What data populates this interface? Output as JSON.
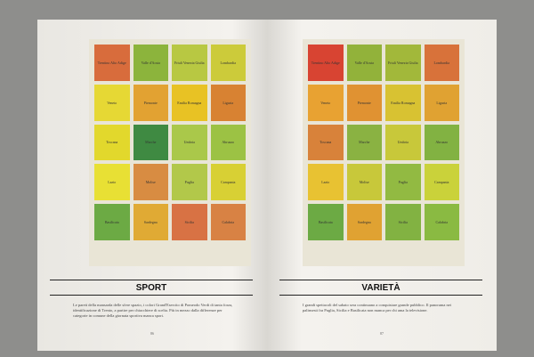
{
  "pages": [
    {
      "title": "SPORT",
      "page_number": "86",
      "body": "Le pareti della mansarda delle sfere spazio, i colori Grand'Esercito di Pomeodo Verdi di tanta forza, identificazione di Trento, a partire per chiacchiere di scelta. Più in mezzo dalla differenze per categorie in comune della giornata sportiva manca sport.",
      "cells": [
        {
          "label": "Trentino Alto Adige",
          "color": "#d86c3c"
        },
        {
          "label": "Valle d'Aosta",
          "color": "#8cb43c"
        },
        {
          "label": "Friuli Venezia Giulia",
          "color": "#b8c842"
        },
        {
          "label": "Lombardia",
          "color": "#cccb3a"
        },
        {
          "label": "Veneto",
          "color": "#e6d834"
        },
        {
          "label": "Piemonte",
          "color": "#e2a232"
        },
        {
          "label": "Emilia Romagna",
          "color": "#e8c224"
        },
        {
          "label": "Liguria",
          "color": "#d88232"
        },
        {
          "label": "Toscana",
          "color": "#e2d82c"
        },
        {
          "label": "Marche",
          "color": "#3f8a42"
        },
        {
          "label": "Umbria",
          "color": "#aac84a"
        },
        {
          "label": "Abruzzo",
          "color": "#9cc244"
        },
        {
          "label": "Lazio",
          "color": "#e8e034"
        },
        {
          "label": "Molise",
          "color": "#d88c42"
        },
        {
          "label": "Puglia",
          "color": "#b2c84a"
        },
        {
          "label": "Campania",
          "color": "#d8d034"
        },
        {
          "label": "Basilicata",
          "color": "#6caa44"
        },
        {
          "label": "Sardegna",
          "color": "#e0aa34"
        },
        {
          "label": "Sicilia",
          "color": "#d87244"
        },
        {
          "label": "Calabria",
          "color": "#d88244"
        }
      ]
    },
    {
      "title": "VARIETÀ",
      "page_number": "87",
      "body": "I grandi spettacoli del sabato sera continuano a conquistare grande pubblico. Il panorama nei palinsesti fra Puglia, Sicilia e Basilicata non manca per chi ama la televisione.",
      "cells": [
        {
          "label": "Trentino Alto Adige",
          "color": "#d84432"
        },
        {
          "label": "Valle d'Aosta",
          "color": "#92b23a"
        },
        {
          "label": "Friuli Venezia Giulia",
          "color": "#a2b83a"
        },
        {
          "label": "Lombardia",
          "color": "#d8723a"
        },
        {
          "label": "Veneto",
          "color": "#e8a232"
        },
        {
          "label": "Piemonte",
          "color": "#e09232"
        },
        {
          "label": "Emilia Romagna",
          "color": "#d8c232"
        },
        {
          "label": "Liguria",
          "color": "#e0a232"
        },
        {
          "label": "Toscana",
          "color": "#d8823a"
        },
        {
          "label": "Marche",
          "color": "#8ab242"
        },
        {
          "label": "Umbria",
          "color": "#c8c83a"
        },
        {
          "label": "Abruzzo",
          "color": "#82b242"
        },
        {
          "label": "Lazio",
          "color": "#e8c232"
        },
        {
          "label": "Molise",
          "color": "#c8c83a"
        },
        {
          "label": "Puglia",
          "color": "#92ba42"
        },
        {
          "label": "Campania",
          "color": "#cad23a"
        },
        {
          "label": "Basilicata",
          "color": "#6caa44"
        },
        {
          "label": "Sardegna",
          "color": "#e0a232"
        },
        {
          "label": "Sicilia",
          "color": "#82b242"
        },
        {
          "label": "Calabria",
          "color": "#8aba42"
        }
      ]
    }
  ]
}
